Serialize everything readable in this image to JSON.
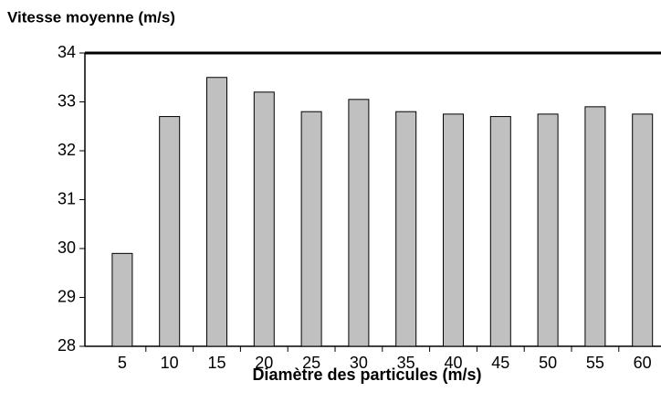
{
  "chart_data": {
    "type": "bar",
    "y_label": "Vitesse moyenne (m/s)",
    "x_label": "Diamètre des particules (m/s)",
    "categories": [
      "5",
      "10",
      "15",
      "20",
      "25",
      "30",
      "35",
      "40",
      "45",
      "50",
      "55",
      "60"
    ],
    "values": [
      29.9,
      32.7,
      33.5,
      33.2,
      32.8,
      33.05,
      32.8,
      32.75,
      32.7,
      32.75,
      32.9,
      32.75
    ],
    "color": "#c0c0c0",
    "ylim": [
      28,
      34
    ],
    "yticks": [
      28,
      29,
      30,
      31,
      32,
      33,
      34
    ],
    "grid": false
  }
}
